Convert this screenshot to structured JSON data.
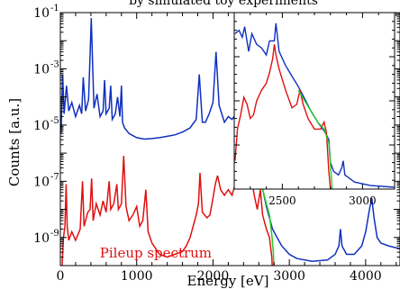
{
  "chart_data": [
    {
      "type": "line",
      "title": "by simulated toy experiments",
      "xlabel": "Energy [eV]",
      "ylabel": "Counts [a.u.]",
      "xlim": [
        0,
        4450
      ],
      "ylim_log10": [
        -10,
        -1
      ],
      "y_scale": "log",
      "xticks": [
        0,
        1000,
        2000,
        3000,
        4000
      ],
      "yticks": [
        {
          "label": "10",
          "exp": "-1",
          "log": -1
        },
        {
          "label": "10",
          "exp": "-3",
          "log": -3
        },
        {
          "label": "10",
          "exp": "-5",
          "log": -5
        },
        {
          "label": "10",
          "exp": "-7",
          "log": -7
        },
        {
          "label": "10",
          "exp": "-9",
          "log": -9
        }
      ],
      "annotations": [
        {
          "text": "Pileup spectrum",
          "x": 1250,
          "log_y": -9.55
        }
      ],
      "series": [
        {
          "color": "#1030c0",
          "points": [
            [
              10,
              -5.3
            ],
            [
              30,
              -3.2
            ],
            [
              50,
              -4.6
            ],
            [
              80,
              -3.6
            ],
            [
              110,
              -4.5
            ],
            [
              150,
              -4.2
            ],
            [
              200,
              -4.7
            ],
            [
              250,
              -4.3
            ],
            [
              280,
              -4.6
            ],
            [
              300,
              -3.3
            ],
            [
              330,
              -4.5
            ],
            [
              370,
              -4.1
            ],
            [
              390,
              -2.5
            ],
            [
              405,
              -1.2
            ],
            [
              420,
              -2.6
            ],
            [
              440,
              -4.4
            ],
            [
              480,
              -3.9
            ],
            [
              520,
              -4.7
            ],
            [
              560,
              -4.5
            ],
            [
              580,
              -3.4
            ],
            [
              600,
              -4.6
            ],
            [
              640,
              -4.4
            ],
            [
              660,
              -3.6
            ],
            [
              680,
              -4.8
            ],
            [
              720,
              -4.6
            ],
            [
              750,
              -4.0
            ],
            [
              780,
              -4.7
            ],
            [
              800,
              -3.6
            ],
            [
              815,
              -4.9
            ],
            [
              840,
              -5.1
            ],
            [
              900,
              -5.3
            ],
            [
              1000,
              -5.45
            ],
            [
              1100,
              -5.5
            ],
            [
              1200,
              -5.48
            ],
            [
              1300,
              -5.45
            ],
            [
              1400,
              -5.4
            ],
            [
              1500,
              -5.35
            ],
            [
              1600,
              -5.25
            ],
            [
              1700,
              -5.1
            ],
            [
              1780,
              -4.8
            ],
            [
              1820,
              -3.2
            ],
            [
              1860,
              -4.9
            ],
            [
              1900,
              -4.9
            ],
            [
              1950,
              -4.6
            ],
            [
              2000,
              -4.2
            ],
            [
              2040,
              -2.4
            ],
            [
              2080,
              -4.3
            ],
            [
              2150,
              -4.9
            ],
            [
              2200,
              -4.7
            ],
            [
              2250,
              -4.8
            ],
            [
              2300,
              -4.6
            ],
            [
              2350,
              -4.9
            ],
            [
              2400,
              -4.7
            ],
            [
              2420,
              -5.3
            ],
            [
              2460,
              -5.4
            ],
            [
              2500,
              -5.9
            ],
            [
              2540,
              -6.3
            ],
            [
              2580,
              -6.6
            ],
            [
              2620,
              -7.0
            ],
            [
              2660,
              -7.4
            ],
            [
              2700,
              -7.9
            ],
            [
              2740,
              -8.3
            ],
            [
              2780,
              -8.7
            ],
            [
              2820,
              -8.9
            ],
            [
              2900,
              -9.3
            ],
            [
              3000,
              -9.6
            ],
            [
              3100,
              -9.75
            ],
            [
              3300,
              -9.85
            ],
            [
              3500,
              -9.8
            ],
            [
              3600,
              -9.6
            ],
            [
              3650,
              -9.3
            ],
            [
              3670,
              -8.7
            ],
            [
              3690,
              -9.3
            ],
            [
              3750,
              -9.6
            ],
            [
              3850,
              -9.6
            ],
            [
              3950,
              -9.3
            ],
            [
              4000,
              -8.8
            ],
            [
              4050,
              -8.0
            ],
            [
              4080,
              -7.6
            ],
            [
              4110,
              -8.3
            ],
            [
              4150,
              -9.0
            ],
            [
              4200,
              -9.2
            ],
            [
              4300,
              -9.3
            ],
            [
              4450,
              -9.4
            ]
          ]
        },
        {
          "color": "#e01010",
          "points": [
            [
              20,
              -10.2
            ],
            [
              40,
              -9.0
            ],
            [
              60,
              -8.6
            ],
            [
              75,
              -7.1
            ],
            [
              90,
              -8.6
            ],
            [
              110,
              -9.1
            ],
            [
              150,
              -8.8
            ],
            [
              200,
              -9.1
            ],
            [
              260,
              -8.7
            ],
            [
              290,
              -7.0
            ],
            [
              310,
              -8.6
            ],
            [
              360,
              -8.1
            ],
            [
              390,
              -8.0
            ],
            [
              410,
              -6.9
            ],
            [
              430,
              -8.4
            ],
            [
              470,
              -7.8
            ],
            [
              520,
              -8.2
            ],
            [
              560,
              -7.7
            ],
            [
              600,
              -8.1
            ],
            [
              640,
              -7.0
            ],
            [
              660,
              -8.0
            ],
            [
              700,
              -7.8
            ],
            [
              740,
              -7.1
            ],
            [
              760,
              -8.0
            ],
            [
              800,
              -7.8
            ],
            [
              830,
              -6.1
            ],
            [
              860,
              -7.9
            ],
            [
              900,
              -8.4
            ],
            [
              950,
              -8.2
            ],
            [
              1000,
              -7.9
            ],
            [
              1040,
              -8.6
            ],
            [
              1080,
              -8.4
            ],
            [
              1120,
              -7.3
            ],
            [
              1150,
              -8.8
            ],
            [
              1200,
              -9.2
            ],
            [
              1250,
              -9.4
            ],
            [
              1300,
              -9.6
            ],
            [
              1400,
              -9.7
            ],
            [
              1500,
              -9.6
            ],
            [
              1600,
              -9.5
            ],
            [
              1650,
              -9.3
            ],
            [
              1700,
              -9.0
            ],
            [
              1780,
              -8.2
            ],
            [
              1810,
              -7.8
            ],
            [
              1830,
              -6.7
            ],
            [
              1860,
              -8.1
            ],
            [
              1920,
              -8.3
            ],
            [
              1960,
              -8.2
            ],
            [
              2000,
              -7.6
            ],
            [
              2030,
              -7.1
            ],
            [
              2060,
              -6.8
            ],
            [
              2100,
              -7.3
            ],
            [
              2150,
              -7.5
            ],
            [
              2200,
              -7.3
            ],
            [
              2250,
              -7.5
            ],
            [
              2300,
              -7.0
            ],
            [
              2350,
              -6.8
            ],
            [
              2400,
              -6.3
            ],
            [
              2440,
              -5.4
            ],
            [
              2470,
              -5.7
            ],
            [
              2500,
              -6.8
            ],
            [
              2540,
              -7.5
            ],
            [
              2580,
              -8.0
            ],
            [
              2620,
              -7.3
            ],
            [
              2650,
              -8.2
            ],
            [
              2700,
              -8.7
            ],
            [
              2740,
              -9.0
            ],
            [
              2770,
              -9.7
            ],
            [
              2780,
              -10.2
            ]
          ]
        },
        {
          "color": "#22cc22",
          "points": [
            [
              2400,
              -5.2
            ],
            [
              2450,
              -5.4
            ],
            [
              2500,
              -5.9
            ],
            [
              2540,
              -6.2
            ],
            [
              2580,
              -6.6
            ],
            [
              2620,
              -7.0
            ],
            [
              2660,
              -7.4
            ],
            [
              2700,
              -7.8
            ],
            [
              2740,
              -8.2
            ],
            [
              2770,
              -8.9
            ],
            [
              2790,
              -9.5
            ],
            [
              2800,
              -10.2
            ]
          ]
        }
      ]
    },
    {
      "type": "line",
      "inset": true,
      "xlim": [
        2200,
        3200
      ],
      "xticks": [
        2500,
        3000
      ],
      "series": [
        {
          "color": "#1030c0",
          "points": [
            [
              2205,
              0.12
            ],
            [
              2230,
              0.1
            ],
            [
              2250,
              0.14
            ],
            [
              2265,
              0.08
            ],
            [
              2290,
              0.22
            ],
            [
              2310,
              0.12
            ],
            [
              2340,
              0.18
            ],
            [
              2370,
              0.2
            ],
            [
              2400,
              0.24
            ],
            [
              2420,
              0.16
            ],
            [
              2450,
              0.16
            ],
            [
              2460,
              0.06
            ],
            [
              2480,
              0.22
            ],
            [
              2520,
              0.3
            ],
            [
              2560,
              0.36
            ],
            [
              2600,
              0.42
            ],
            [
              2640,
              0.49
            ],
            [
              2680,
              0.56
            ],
            [
              2720,
              0.62
            ],
            [
              2760,
              0.67
            ],
            [
              2790,
              0.72
            ],
            [
              2800,
              0.85
            ],
            [
              2820,
              0.9
            ],
            [
              2850,
              0.92
            ],
            [
              2870,
              0.88
            ],
            [
              2880,
              0.84
            ],
            [
              2890,
              0.92
            ],
            [
              2950,
              0.96
            ],
            [
              3050,
              0.98
            ],
            [
              3200,
              0.99
            ]
          ]
        },
        {
          "color": "#e01010",
          "points": [
            [
              2205,
              0.84
            ],
            [
              2220,
              0.66
            ],
            [
              2240,
              0.58
            ],
            [
              2260,
              0.48
            ],
            [
              2280,
              0.52
            ],
            [
              2300,
              0.6
            ],
            [
              2320,
              0.58
            ],
            [
              2340,
              0.5
            ],
            [
              2370,
              0.44
            ],
            [
              2400,
              0.4
            ],
            [
              2420,
              0.34
            ],
            [
              2440,
              0.26
            ],
            [
              2450,
              0.18
            ],
            [
              2460,
              0.24
            ],
            [
              2480,
              0.32
            ],
            [
              2520,
              0.44
            ],
            [
              2560,
              0.54
            ],
            [
              2590,
              0.52
            ],
            [
              2610,
              0.44
            ],
            [
              2630,
              0.52
            ],
            [
              2660,
              0.6
            ],
            [
              2700,
              0.66
            ],
            [
              2740,
              0.66
            ],
            [
              2760,
              0.62
            ],
            [
              2775,
              0.68
            ],
            [
              2790,
              0.9
            ],
            [
              2800,
              1.0
            ]
          ]
        },
        {
          "color": "#22cc22",
          "points": [
            [
              2600,
              0.44
            ],
            [
              2640,
              0.5
            ],
            [
              2680,
              0.56
            ],
            [
              2720,
              0.62
            ],
            [
              2760,
              0.66
            ],
            [
              2790,
              0.74
            ],
            [
              2800,
              0.86
            ],
            [
              2810,
              1.0
            ]
          ]
        }
      ]
    }
  ]
}
